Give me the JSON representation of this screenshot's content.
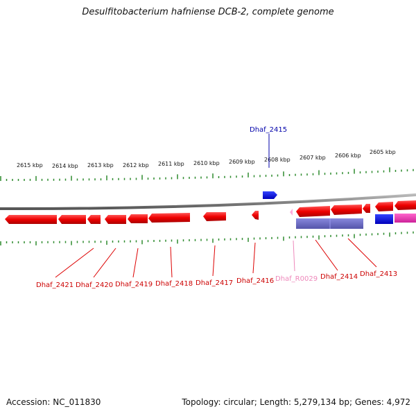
{
  "title": "Desulfitobacterium hafniense DCB-2, complete genome",
  "footer": {
    "accession": "Accession: NC_011830",
    "summary": "Topology: circular; Length: 5,279,134 bp; Genes: 4,972"
  },
  "colors": {
    "forward_ruler": "#2e8b2e",
    "gene_red": "#ee1111",
    "gene_blue": "#0000ee",
    "gene_pink": "#ee55bb",
    "cds_purple": "#6666cc",
    "rna_pink": "#ff99cc",
    "backbone": "#888888"
  },
  "ruler_labels": [
    "2615 kbp",
    "2614 kbp",
    "2613 kbp",
    "2612 kbp",
    "2611 kbp",
    "2610 kbp",
    "2609 kbp",
    "2608 kbp",
    "2607 kbp",
    "2606 kbp",
    "2605 kbp"
  ],
  "gene_labels": [
    {
      "id": "g2415",
      "text": "Dhaf_2415",
      "color": "#0000aa"
    },
    {
      "id": "g2421",
      "text": "Dhaf_2421",
      "color": "#cc0000"
    },
    {
      "id": "g2420",
      "text": "Dhaf_2420",
      "color": "#cc0000"
    },
    {
      "id": "g2419",
      "text": "Dhaf_2419",
      "color": "#cc0000"
    },
    {
      "id": "g2418",
      "text": "Dhaf_2418",
      "color": "#cc0000"
    },
    {
      "id": "g2417",
      "text": "Dhaf_2417",
      "color": "#cc0000"
    },
    {
      "id": "g2416",
      "text": "Dhaf_2416",
      "color": "#cc0000"
    },
    {
      "id": "gR0029",
      "text": "Dhaf_R0029",
      "color": "#ee88bb"
    },
    {
      "id": "g2414",
      "text": "Dhaf_2414",
      "color": "#cc0000"
    },
    {
      "id": "g2413",
      "text": "Dhaf_2413",
      "color": "#cc0000"
    }
  ]
}
